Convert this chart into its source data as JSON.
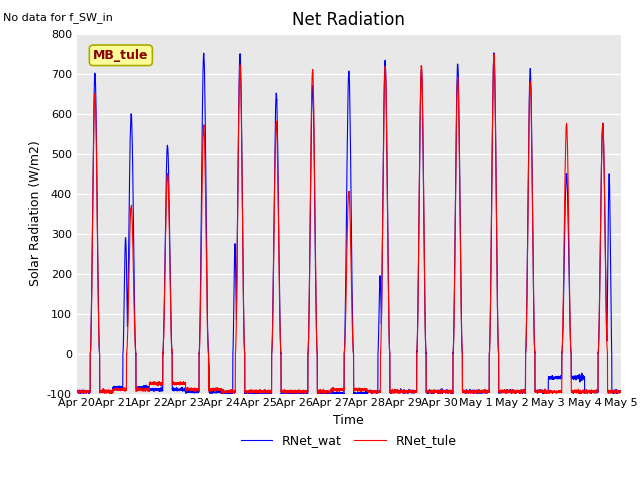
{
  "title": "Net Radiation",
  "top_left_text": "No data for f_SW_in",
  "annotation_text": "MB_tule",
  "xlabel": "Time",
  "ylabel": "Solar Radiation (W/m2)",
  "ylim": [
    -100,
    800
  ],
  "yticks": [
    -100,
    0,
    100,
    200,
    300,
    400,
    500,
    600,
    700,
    800
  ],
  "line1_label": "RNet_tule",
  "line1_color": "#ff0000",
  "line2_label": "RNet_wat",
  "line2_color": "#0000ff",
  "bg_color": "#e8e8e8",
  "fig_color": "#ffffff",
  "n_days": 15,
  "xtick_labels": [
    "Apr 20",
    "Apr 21",
    "Apr 22",
    "Apr 23",
    "Apr 24",
    "Apr 25",
    "Apr 26",
    "Apr 27",
    "Apr 28",
    "Apr 29",
    "Apr 30",
    "May 1",
    "May 2",
    "May 3",
    "May 4",
    "May 5"
  ],
  "title_fontsize": 12,
  "label_fontsize": 9,
  "tick_fontsize": 8,
  "red_peaks": [
    650,
    370,
    450,
    570,
    720,
    580,
    710,
    405,
    720,
    720,
    690,
    745,
    680,
    575,
    575
  ],
  "blue_peaks": [
    700,
    600,
    520,
    750,
    750,
    650,
    670,
    705,
    730,
    710,
    725,
    750,
    710,
    450,
    575
  ],
  "red_night": [
    -95,
    -90,
    -75,
    -90,
    -95,
    -95,
    -95,
    -90,
    -95,
    -95,
    -95,
    -95,
    -95,
    -95,
    -95
  ],
  "blue_night": [
    -95,
    -85,
    -90,
    -95,
    -100,
    -100,
    -100,
    -100,
    -95,
    -95,
    -95,
    -95,
    -95,
    -60,
    -95
  ],
  "peak_spread": 0.13,
  "night_val": -95
}
